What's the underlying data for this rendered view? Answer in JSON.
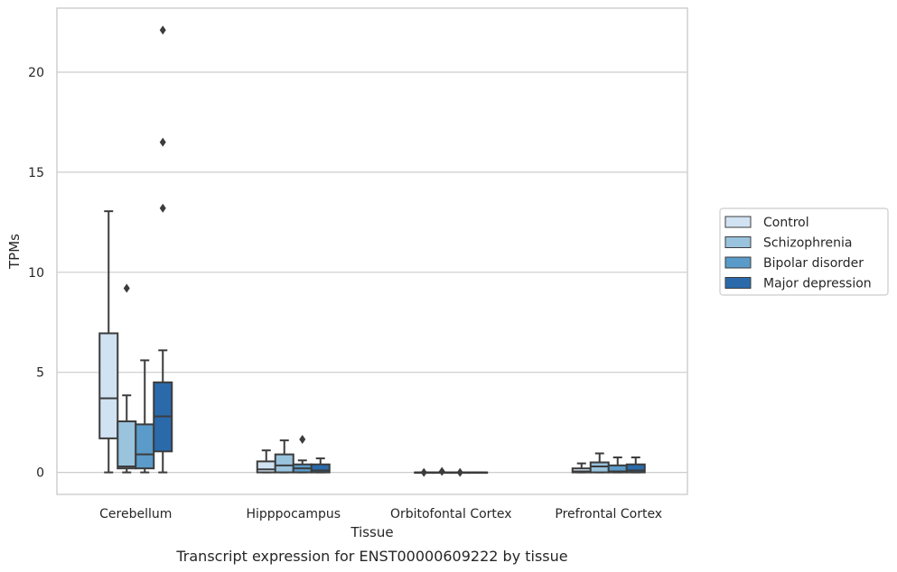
{
  "chart_data": {
    "type": "box",
    "title": "Transcript expression for ENST00000609222 by tissue",
    "xlabel": "Tissue",
    "ylabel": "TPMs",
    "ylim": [
      -1.1,
      23.2
    ],
    "yticks": [
      0,
      5,
      10,
      15,
      20
    ],
    "grid": "horizontal",
    "legend_position": "right",
    "categories": [
      "Cerebellum",
      "Hipppocampus",
      "Orbitofontal Cortex",
      "Prefrontal Cortex"
    ],
    "series": [
      {
        "name": "Control",
        "color": "#d1e2f2",
        "boxes": [
          {
            "whislo": 0.0,
            "q1": 1.7,
            "med": 3.7,
            "q3": 6.95,
            "whishi": 13.05,
            "fliers": []
          },
          {
            "whislo": 0.0,
            "q1": 0.0,
            "med": 0.15,
            "q3": 0.55,
            "whishi": 1.1,
            "fliers": []
          },
          {
            "whislo": 0.0,
            "q1": 0.0,
            "med": 0.0,
            "q3": 0.0,
            "whishi": 0.0,
            "fliers": [
              0.0
            ]
          },
          {
            "whislo": 0.0,
            "q1": 0.0,
            "med": 0.05,
            "q3": 0.2,
            "whishi": 0.45,
            "fliers": []
          }
        ]
      },
      {
        "name": "Schizophrenia",
        "color": "#9ac3de",
        "boxes": [
          {
            "whislo": 0.0,
            "q1": 0.2,
            "med": 0.3,
            "q3": 2.55,
            "whishi": 3.85,
            "fliers": [
              9.2
            ]
          },
          {
            "whislo": 0.0,
            "q1": 0.0,
            "med": 0.35,
            "q3": 0.9,
            "whishi": 1.6,
            "fliers": []
          },
          {
            "whislo": 0.0,
            "q1": 0.0,
            "med": 0.0,
            "q3": 0.0,
            "whishi": 0.0,
            "fliers": [
              0.05
            ]
          },
          {
            "whislo": 0.0,
            "q1": 0.0,
            "med": 0.3,
            "q3": 0.5,
            "whishi": 0.95,
            "fliers": []
          }
        ]
      },
      {
        "name": "Bipolar disorder",
        "color": "#5a9bc9",
        "boxes": [
          {
            "whislo": 0.0,
            "q1": 0.2,
            "med": 0.9,
            "q3": 2.4,
            "whishi": 5.6,
            "fliers": []
          },
          {
            "whislo": 0.0,
            "q1": 0.0,
            "med": 0.2,
            "q3": 0.4,
            "whishi": 0.6,
            "fliers": [
              1.65
            ]
          },
          {
            "whislo": 0.0,
            "q1": 0.0,
            "med": 0.0,
            "q3": 0.0,
            "whishi": 0.0,
            "fliers": [
              0.0
            ]
          },
          {
            "whislo": 0.0,
            "q1": 0.0,
            "med": 0.05,
            "q3": 0.35,
            "whishi": 0.75,
            "fliers": []
          }
        ]
      },
      {
        "name": "Major depression",
        "color": "#2a6aab",
        "boxes": [
          {
            "whislo": 0.0,
            "q1": 1.05,
            "med": 2.8,
            "q3": 4.5,
            "whishi": 6.1,
            "fliers": [
              13.2,
              16.5,
              22.1
            ]
          },
          {
            "whislo": 0.0,
            "q1": 0.0,
            "med": 0.1,
            "q3": 0.4,
            "whishi": 0.7,
            "fliers": []
          },
          {
            "whislo": 0.0,
            "q1": 0.0,
            "med": 0.0,
            "q3": 0.0,
            "whishi": 0.0,
            "fliers": []
          },
          {
            "whislo": 0.0,
            "q1": 0.0,
            "med": 0.1,
            "q3": 0.4,
            "whishi": 0.75,
            "fliers": []
          }
        ]
      }
    ]
  }
}
